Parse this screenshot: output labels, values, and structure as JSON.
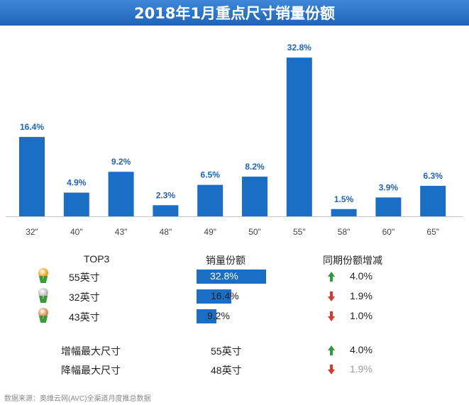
{
  "title": "2018年1月重点尺寸销量份额",
  "chart_data": {
    "type": "bar",
    "title": "2018年1月重点尺寸销量份额",
    "categories": [
      "32\"",
      "40\"",
      "43\"",
      "48\"",
      "49\"",
      "50\"",
      "55\"",
      "58\"",
      "60\"",
      "65\""
    ],
    "values": [
      16.4,
      4.9,
      9.2,
      2.3,
      6.5,
      8.2,
      32.8,
      1.5,
      3.9,
      6.3
    ],
    "value_labels": [
      "16.4%",
      "4.9%",
      "9.2%",
      "2.3%",
      "6.5%",
      "8.2%",
      "32.8%",
      "1.5%",
      "3.9%",
      "6.3%"
    ],
    "xlabel": "",
    "ylabel": "",
    "ylim": [
      0,
      34
    ],
    "grid": false,
    "bar_color": "#1a6fc4",
    "label_color": "#1f63b8"
  },
  "table": {
    "headers": {
      "rank": "TOP3",
      "share": "销量份额",
      "change": "同期份额增减"
    },
    "rows": [
      {
        "medal": "gold-medal",
        "medal_color": "#f0a020",
        "size": "55英寸",
        "share": 32.8,
        "share_label": "32.8%",
        "direction": "up",
        "change": "4.0%"
      },
      {
        "medal": "silver-medal",
        "medal_color": "#b8b8b8",
        "size": "32英寸",
        "share": 16.4,
        "share_label": "16.4%",
        "direction": "down",
        "change": "1.9%"
      },
      {
        "medal": "bronze-medal",
        "medal_color": "#d98a4e",
        "size": "43英寸",
        "share": 9.2,
        "share_label": "9.2%",
        "direction": "down",
        "change": "1.0%"
      }
    ],
    "extras": [
      {
        "label": "增幅最大尺寸",
        "size": "55英寸",
        "direction": "up",
        "change": "4.0%"
      },
      {
        "label": "降幅最大尺寸",
        "size": "48英寸",
        "direction": "down",
        "change": "1.9%"
      }
    ]
  },
  "colors": {
    "up": "#2e9a3e",
    "down": "#d33a2c"
  },
  "footer": "数据来源：奥维云网(AVC)全渠道月度推总数据"
}
